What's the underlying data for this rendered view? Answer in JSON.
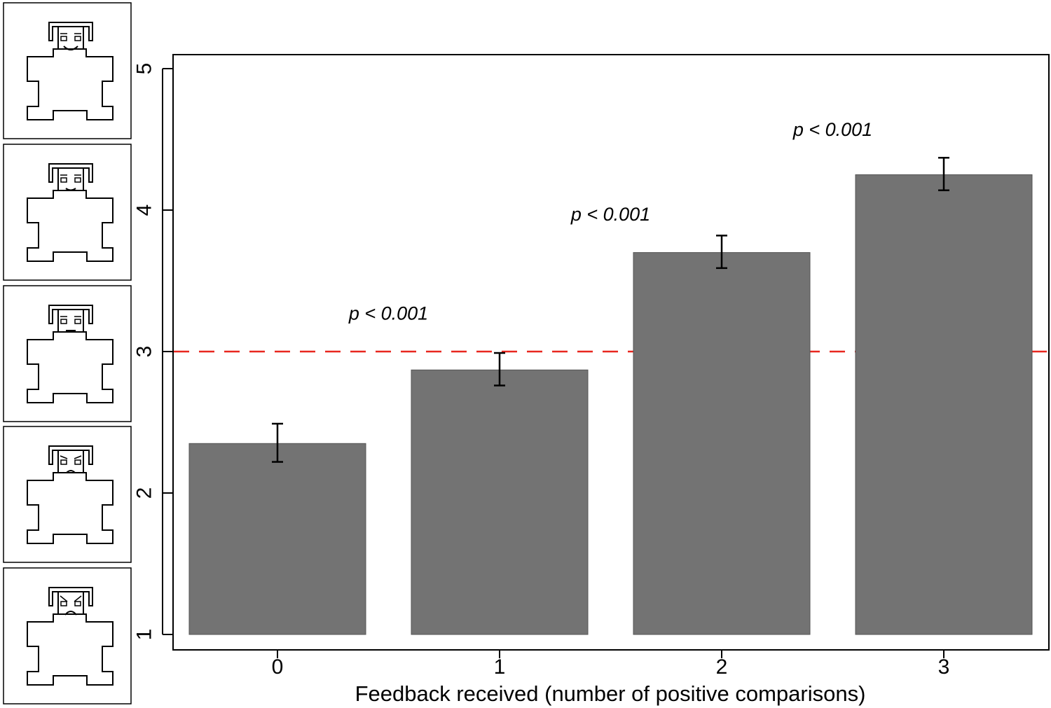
{
  "chart_data": {
    "type": "bar",
    "categories": [
      "0",
      "1",
      "2",
      "3"
    ],
    "values": [
      2.35,
      2.87,
      3.7,
      4.25
    ],
    "error_bars": [
      {
        "low": 2.22,
        "high": 2.49
      },
      {
        "low": 2.76,
        "high": 2.99
      },
      {
        "low": 3.59,
        "high": 3.82
      },
      {
        "low": 4.14,
        "high": 4.37
      }
    ],
    "title": "",
    "xlabel": "Feedback received (number of positive comparisons)",
    "ylabel": "",
    "ylim": [
      1,
      5
    ],
    "yticks": [
      "1",
      "2",
      "3",
      "4",
      "5"
    ],
    "reference_line": {
      "y": 3,
      "style": "dashed",
      "color": "#e8271f"
    },
    "annotations": [
      {
        "text": "p < 0.001",
        "between": [
          0,
          1
        ],
        "y": 3.27
      },
      {
        "text": "p < 0.001",
        "between": [
          1,
          2
        ],
        "y": 3.97
      },
      {
        "text": "p < 0.001",
        "between": [
          2,
          3
        ],
        "y": 4.57
      }
    ],
    "bar_color": "#737373",
    "grid": false,
    "y_axis_pictograms": [
      "smile-wide-icon",
      "smile-slight-icon",
      "neutral-face-icon",
      "frown-slight-icon",
      "frown-deep-icon"
    ]
  }
}
